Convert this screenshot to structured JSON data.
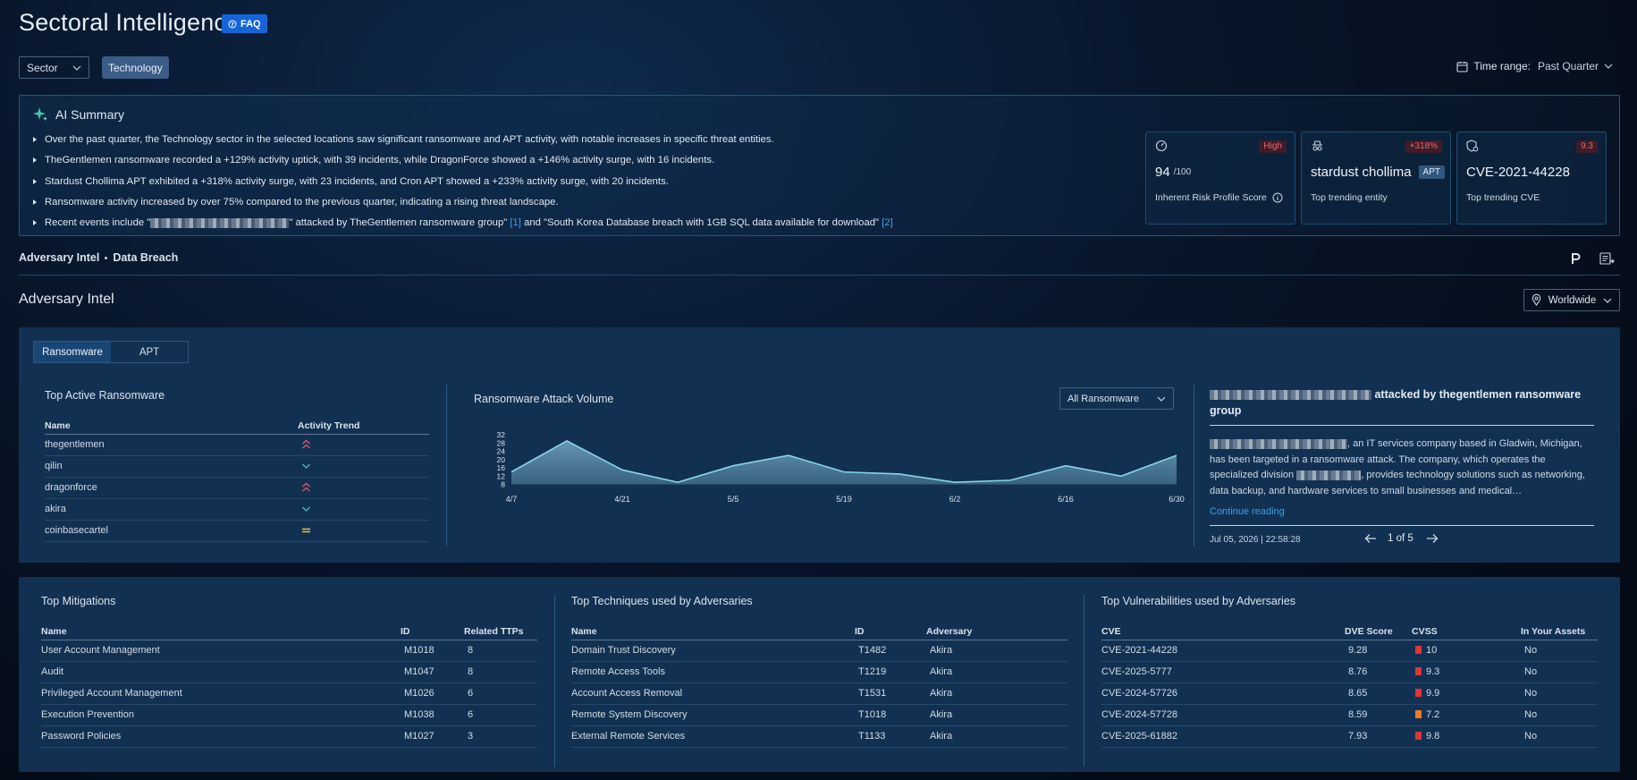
{
  "header": {
    "title": "Sectoral Intelligence",
    "faq_label": "FAQ"
  },
  "filters": {
    "sector_label": "Sector",
    "sector_chip": "Technology",
    "time_range_label": "Time range:",
    "time_range_value": "Past Quarter"
  },
  "ai_summary": {
    "title": "AI Summary",
    "bullets": [
      "Over the past quarter, the Technology sector in the selected locations saw significant ransomware and APT activity, with notable increases in specific threat entities.",
      "TheGentlemen ransomware recorded a +129% activity uptick, with 39 incidents, while DragonForce showed a +146% activity surge, with 16 incidents.",
      "Stardust Chollima APT exhibited a +318% activity surge, with 23 incidents, and Cron APT showed a +233% activity surge, with 20 incidents.",
      "Ransomware activity increased by over 75% compared to the previous quarter, indicating a rising threat landscape."
    ],
    "bullet5": {
      "prefix": "Recent events include \"",
      "middle": "\" attacked by TheGentlemen ransomware group\" ",
      "ref1": "[1]",
      "mid2": " and \"South Korea Database breach with 1GB SQL data available for download\" ",
      "ref2": "[2]"
    },
    "cards": [
      {
        "badge": "High",
        "value": "94",
        "suffix": "/100",
        "caption": "Inherent Risk Profile Score",
        "icon": "gauge-icon"
      },
      {
        "badge": "+318%",
        "value": "stardust chollima",
        "tag": "APT",
        "caption": "Top trending entity",
        "icon": "spy-icon"
      },
      {
        "badge": "9.3",
        "value": "CVE-2021-44228",
        "caption": "Top trending CVE",
        "icon": "bug-shield-icon"
      }
    ]
  },
  "breadcrumb": {
    "item1": "Adversary Intel",
    "item2": "Data Breach"
  },
  "adversary": {
    "title": "Adversary Intel",
    "region": "Worldwide",
    "tabs": [
      "Ransomware",
      "APT"
    ],
    "top_active": {
      "title": "Top Active Ransomware",
      "col_name": "Name",
      "col_trend": "Activity Trend",
      "rows": [
        {
          "name": "thegentlemen",
          "trend": "up"
        },
        {
          "name": "qilin",
          "trend": "down"
        },
        {
          "name": "dragonforce",
          "trend": "up"
        },
        {
          "name": "akira",
          "trend": "down"
        },
        {
          "name": "coinbasecartel",
          "trend": "flat"
        }
      ]
    },
    "news": {
      "title_suffix": "attacked by thegentlemen ransomware group",
      "body_a": ", an IT services company based in Gladwin, Michigan, has been targeted in a ransomware attack. The company, which operates the specialized division ",
      "body_b": ", provides technology solutions such as networking, data backup, and hardware services to small businesses and medical…",
      "link": "Continue reading",
      "timestamp": "Jul 05, 2026 | 22:58:28",
      "pager": "1 of 5"
    }
  },
  "chart_data": {
    "type": "area",
    "title": "Ransomware Attack Volume",
    "filter": "All Ransomware",
    "x_labels": [
      "4/7",
      "4/21",
      "5/5",
      "5/19",
      "6/2",
      "6/16",
      "6/30"
    ],
    "y_ticks": [
      8,
      12,
      16,
      20,
      24,
      28,
      32
    ],
    "ylim": [
      8,
      32
    ],
    "series": [
      {
        "values": [
          14,
          29,
          15,
          9,
          17,
          22,
          14,
          13,
          9,
          10,
          17,
          12,
          22
        ]
      }
    ],
    "color": "#87d5ea"
  },
  "mitigations": {
    "title": "Top Mitigations",
    "cols": [
      "Name",
      "ID",
      "Related TTPs"
    ],
    "rows": [
      [
        "User Account Management",
        "M1018",
        "8"
      ],
      [
        "Audit",
        "M1047",
        "8"
      ],
      [
        "Privileged Account Management",
        "M1026",
        "6"
      ],
      [
        "Execution Prevention",
        "M1038",
        "6"
      ],
      [
        "Password Policies",
        "M1027",
        "3"
      ]
    ]
  },
  "techniques": {
    "title": "Top Techniques used by Adversaries",
    "cols": [
      "Name",
      "ID",
      "Adversary"
    ],
    "rows": [
      [
        "Domain Trust Discovery",
        "T1482",
        "Akira"
      ],
      [
        "Remote Access Tools",
        "T1219",
        "Akira"
      ],
      [
        "Account Access Removal",
        "T1531",
        "Akira"
      ],
      [
        "Remote System Discovery",
        "T1018",
        "Akira"
      ],
      [
        "External Remote Services",
        "T1133",
        "Akira"
      ]
    ]
  },
  "vulns": {
    "title": "Top Vulnerabilities used by Adversaries",
    "cols": [
      "CVE",
      "DVE Score",
      "CVSS",
      "In Your Assets"
    ],
    "rows": [
      [
        "CVE-2021-44228",
        "9.28",
        "10",
        "No"
      ],
      [
        "CVE-2025-5777",
        "8.76",
        "9.3",
        "No"
      ],
      [
        "CVE-2024-57726",
        "8.65",
        "9.9",
        "No"
      ],
      [
        "CVE-2024-57728",
        "8.59",
        "7.2",
        "No"
      ],
      [
        "CVE-2025-61882",
        "7.93",
        "9.8",
        "No"
      ]
    ],
    "cvss_colors": [
      "#e0343a",
      "#e0343a",
      "#e0343a",
      "#f07a2c",
      "#e0343a"
    ]
  }
}
